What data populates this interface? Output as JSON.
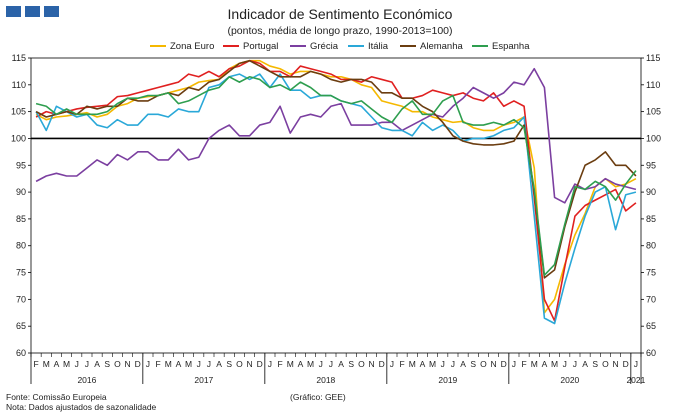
{
  "header": {
    "title": "Indicador de Sentimento Económico",
    "subtitle": "(pontos, média de longo prazo, 1990-2013=100)"
  },
  "colors": {
    "logo": "#2b63a8",
    "Zona Euro": "#f5b800",
    "Portugal": "#e02020",
    "Grécia": "#7b3fa0",
    "Itália": "#2aa8d8",
    "Alemanha": "#6b3d10",
    "Espanha": "#2e9e4f"
  },
  "footer": {
    "source": "Fonte: Comissão Europeia",
    "note": "Nota: Dados ajustados de sazonalidade",
    "credit": "(Gráfico: GEE)"
  },
  "chart_data": {
    "type": "line",
    "title": "Indicador de Sentimento Económico",
    "subtitle": "(pontos, média de longo prazo, 1990-2013=100)",
    "ylim": [
      60,
      115
    ],
    "yticks": [
      60,
      65,
      70,
      75,
      80,
      85,
      90,
      95,
      100,
      105,
      110,
      115
    ],
    "reference_line": 100,
    "legend_position": "top",
    "month_labels": [
      "F",
      "M",
      "A",
      "M",
      "J",
      "J",
      "A",
      "S",
      "O",
      "N",
      "D",
      "J",
      "F",
      "M",
      "A",
      "M",
      "J",
      "J",
      "A",
      "S",
      "O",
      "N",
      "D",
      "J",
      "F",
      "M",
      "A",
      "M",
      "J",
      "J",
      "A",
      "S",
      "O",
      "N",
      "D",
      "J",
      "F",
      "M",
      "A",
      "M",
      "J",
      "J",
      "A",
      "S",
      "O",
      "N",
      "D",
      "J",
      "F",
      "M",
      "A",
      "M",
      "J",
      "J",
      "A",
      "S",
      "O",
      "N",
      "D",
      "J"
    ],
    "year_labels": [
      {
        "label": "2016",
        "start": 0,
        "end": 10
      },
      {
        "label": "2017",
        "start": 11,
        "end": 22
      },
      {
        "label": "2018",
        "start": 23,
        "end": 34
      },
      {
        "label": "2019",
        "start": 35,
        "end": 46
      },
      {
        "label": "2020",
        "start": 47,
        "end": 58
      },
      {
        "label": "2021",
        "start": 59,
        "end": 59
      }
    ],
    "series": [
      {
        "name": "Zona Euro",
        "values": [
          104.5,
          103.5,
          104.0,
          104.2,
          104.5,
          104.8,
          104.0,
          104.5,
          106.0,
          106.5,
          107.5,
          107.8,
          108.0,
          108.5,
          109.0,
          109.5,
          110.5,
          110.8,
          111.0,
          113.0,
          114.0,
          114.5,
          114.5,
          113.5,
          113.0,
          112.0,
          112.5,
          112.5,
          112.0,
          111.5,
          111.5,
          111.0,
          110.0,
          109.5,
          107.0,
          106.5,
          106.0,
          105.0,
          105.0,
          104.0,
          103.5,
          103.0,
          103.2,
          102.0,
          101.5,
          101.5,
          102.5,
          103.0,
          104.0,
          94.5,
          67.5,
          70.0,
          76.5,
          82.0,
          86.0,
          91.0,
          92.5,
          91.0,
          91.5,
          92.5
        ]
      },
      {
        "name": "Portugal",
        "values": [
          104.0,
          105.0,
          104.5,
          105.0,
          105.5,
          105.8,
          106.0,
          106.2,
          107.8,
          108.0,
          108.5,
          109.0,
          109.5,
          110.0,
          110.5,
          112.0,
          111.5,
          112.5,
          111.5,
          113.0,
          113.5,
          114.5,
          114.0,
          112.5,
          112.5,
          111.5,
          113.5,
          113.0,
          112.5,
          112.0,
          111.0,
          111.0,
          110.5,
          111.5,
          111.0,
          110.5,
          107.5,
          107.5,
          108.0,
          109.0,
          108.5,
          108.0,
          108.5,
          107.5,
          107.0,
          108.5,
          106.0,
          107.0,
          106.0,
          89.0,
          70.0,
          66.0,
          76.0,
          85.5,
          87.5,
          88.5,
          89.5,
          90.5,
          86.5,
          88.0
        ]
      },
      {
        "name": "Grécia",
        "values": [
          92.0,
          93.0,
          93.5,
          93.0,
          93.0,
          94.5,
          96.0,
          95.0,
          97.0,
          96.0,
          97.5,
          97.5,
          96.0,
          96.0,
          98.0,
          96.0,
          96.5,
          100.0,
          101.5,
          102.5,
          100.5,
          100.5,
          102.5,
          103.0,
          106.0,
          101.0,
          104.0,
          104.5,
          104.0,
          106.0,
          106.5,
          102.5,
          102.5,
          102.5,
          103.0,
          103.0,
          101.5,
          102.5,
          103.5,
          104.5,
          104.0,
          106.0,
          107.5,
          109.5,
          108.5,
          107.5,
          108.5,
          110.5,
          110.0,
          113.0,
          109.5,
          89.0,
          88.0,
          91.5,
          90.5,
          91.0,
          92.5,
          91.5,
          91.0,
          90.5
        ]
      },
      {
        "name": "Itália",
        "values": [
          105.0,
          101.5,
          106.0,
          105.0,
          104.0,
          104.5,
          102.5,
          102.0,
          103.5,
          102.5,
          102.5,
          104.5,
          104.5,
          104.0,
          105.5,
          105.0,
          105.0,
          109.5,
          110.0,
          111.5,
          112.0,
          111.0,
          112.0,
          109.5,
          112.0,
          109.0,
          109.0,
          107.5,
          108.0,
          108.0,
          107.0,
          106.5,
          106.0,
          104.0,
          102.0,
          101.5,
          101.5,
          100.5,
          103.0,
          101.5,
          102.5,
          101.5,
          99.5,
          100.0,
          100.0,
          100.5,
          101.5,
          102.0,
          104.0,
          85.5,
          66.5,
          65.5,
          73.0,
          79.5,
          85.5,
          90.0,
          91.0,
          83.0,
          89.5,
          90.0
        ]
      },
      {
        "name": "Alemanha",
        "values": [
          105.0,
          104.0,
          104.5,
          105.0,
          104.5,
          106.0,
          105.5,
          106.0,
          106.0,
          107.5,
          107.0,
          107.0,
          108.0,
          108.5,
          108.0,
          109.5,
          109.0,
          110.5,
          111.0,
          112.5,
          114.0,
          114.5,
          113.5,
          112.5,
          111.5,
          111.5,
          111.5,
          112.5,
          112.0,
          111.0,
          110.5,
          111.0,
          111.0,
          110.5,
          108.5,
          108.5,
          107.5,
          107.5,
          106.0,
          105.0,
          103.0,
          100.5,
          99.5,
          99.0,
          98.8,
          98.8,
          99.0,
          99.5,
          102.5,
          90.0,
          74.0,
          75.5,
          83.5,
          90.0,
          95.0,
          96.0,
          97.5,
          95.0,
          95.0,
          93.0
        ]
      },
      {
        "name": "Espanha",
        "values": [
          106.5,
          106.0,
          104.5,
          105.5,
          104.5,
          104.5,
          104.5,
          105.0,
          106.5,
          107.5,
          107.5,
          108.0,
          108.0,
          108.5,
          106.5,
          107.0,
          108.0,
          109.0,
          109.5,
          111.5,
          110.5,
          111.5,
          111.0,
          109.5,
          110.0,
          109.0,
          110.5,
          109.5,
          108.0,
          108.0,
          107.0,
          106.5,
          107.0,
          105.5,
          104.0,
          103.0,
          105.5,
          107.0,
          104.5,
          104.5,
          107.0,
          108.0,
          103.0,
          102.5,
          102.5,
          103.0,
          102.5,
          103.5,
          102.0,
          90.5,
          74.5,
          76.5,
          84.0,
          91.0,
          90.5,
          92.0,
          91.0,
          88.5,
          91.5,
          94.0
        ]
      }
    ]
  }
}
